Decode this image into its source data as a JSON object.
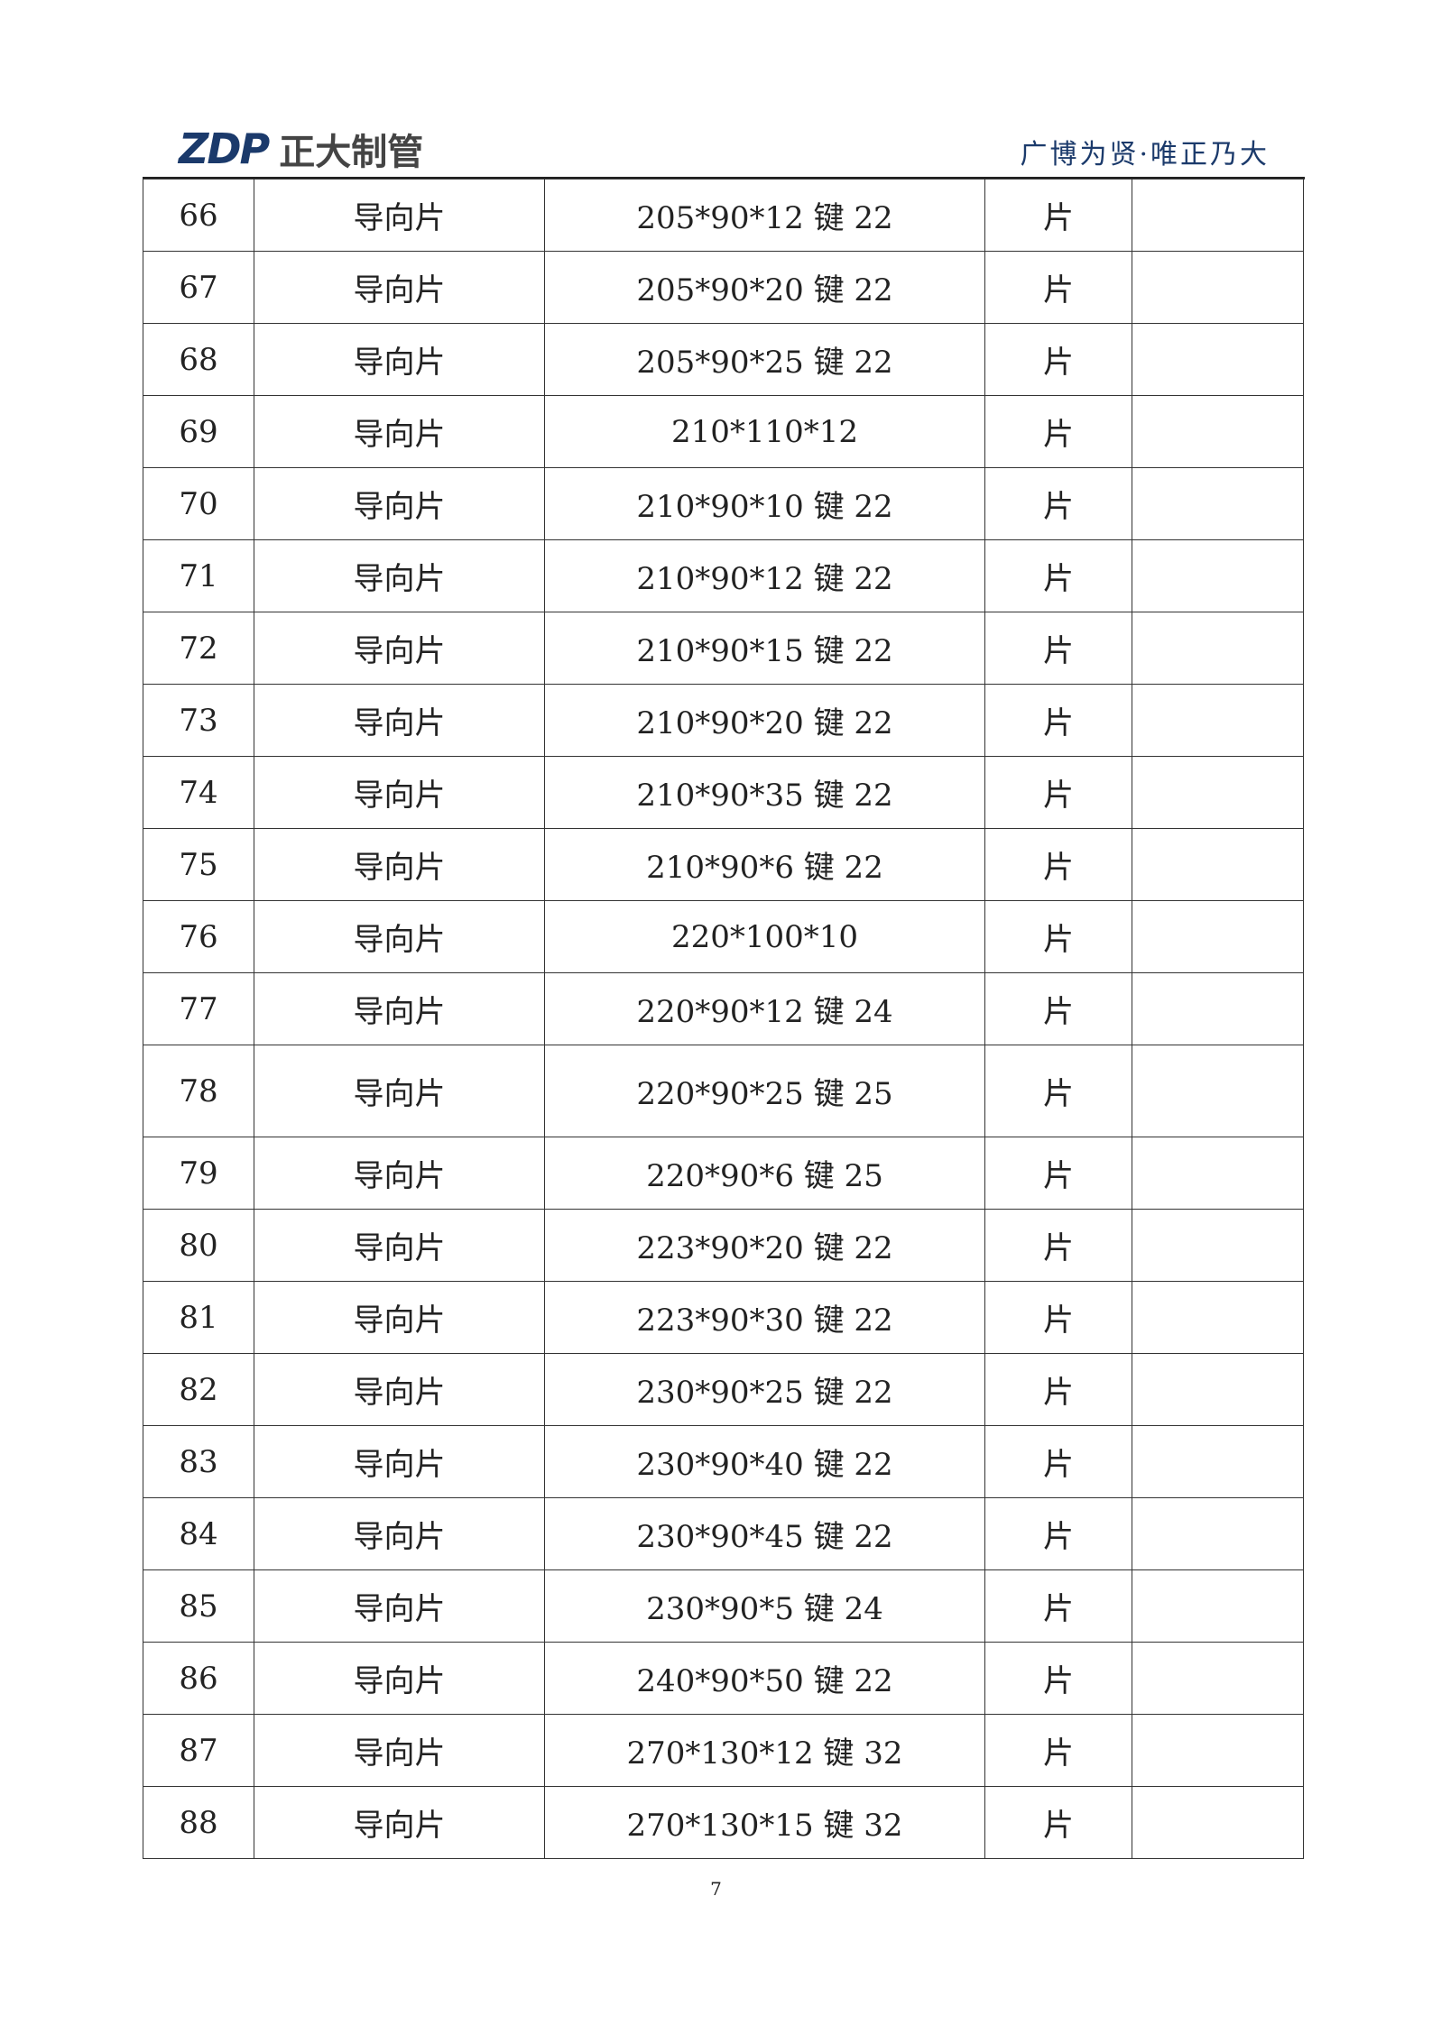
{
  "header": {
    "logo_mark": "ZDP",
    "logo_name": "正大制管",
    "tagline": "广博为贤·唯正乃大"
  },
  "table": {
    "rows": [
      {
        "no": "66",
        "name": "导向片",
        "spec": "205*90*12 键 22",
        "unit": "片",
        "remark": ""
      },
      {
        "no": "67",
        "name": "导向片",
        "spec": "205*90*20 键 22",
        "unit": "片",
        "remark": ""
      },
      {
        "no": "68",
        "name": "导向片",
        "spec": "205*90*25 键 22",
        "unit": "片",
        "remark": ""
      },
      {
        "no": "69",
        "name": "导向片",
        "spec": "210*110*12",
        "unit": "片",
        "remark": ""
      },
      {
        "no": "70",
        "name": "导向片",
        "spec": "210*90*10 键 22",
        "unit": "片",
        "remark": ""
      },
      {
        "no": "71",
        "name": "导向片",
        "spec": "210*90*12 键 22",
        "unit": "片",
        "remark": ""
      },
      {
        "no": "72",
        "name": "导向片",
        "spec": "210*90*15 键 22",
        "unit": "片",
        "remark": ""
      },
      {
        "no": "73",
        "name": "导向片",
        "spec": "210*90*20 键 22",
        "unit": "片",
        "remark": ""
      },
      {
        "no": "74",
        "name": "导向片",
        "spec": "210*90*35 键 22",
        "unit": "片",
        "remark": ""
      },
      {
        "no": "75",
        "name": "导向片",
        "spec": "210*90*6 键 22",
        "unit": "片",
        "remark": ""
      },
      {
        "no": "76",
        "name": "导向片",
        "spec": "220*100*10",
        "unit": "片",
        "remark": ""
      },
      {
        "no": "77",
        "name": "导向片",
        "spec": "220*90*12 键 24",
        "unit": "片",
        "remark": ""
      },
      {
        "no": "78",
        "name": "导向片",
        "spec": "220*90*25 键 25",
        "unit": "片",
        "remark": ""
      },
      {
        "no": "79",
        "name": "导向片",
        "spec": "220*90*6 键 25",
        "unit": "片",
        "remark": ""
      },
      {
        "no": "80",
        "name": "导向片",
        "spec": "223*90*20 键 22",
        "unit": "片",
        "remark": ""
      },
      {
        "no": "81",
        "name": "导向片",
        "spec": "223*90*30 键 22",
        "unit": "片",
        "remark": ""
      },
      {
        "no": "82",
        "name": "导向片",
        "spec": "230*90*25 键 22",
        "unit": "片",
        "remark": ""
      },
      {
        "no": "83",
        "name": "导向片",
        "spec": "230*90*40 键 22",
        "unit": "片",
        "remark": ""
      },
      {
        "no": "84",
        "name": "导向片",
        "spec": "230*90*45 键 22",
        "unit": "片",
        "remark": ""
      },
      {
        "no": "85",
        "name": "导向片",
        "spec": "230*90*5 键 24",
        "unit": "片",
        "remark": ""
      },
      {
        "no": "86",
        "name": "导向片",
        "spec": "240*90*50 键 22",
        "unit": "片",
        "remark": ""
      },
      {
        "no": "87",
        "name": "导向片",
        "spec": "270*130*12 键 32",
        "unit": "片",
        "remark": ""
      },
      {
        "no": "88",
        "name": "导向片",
        "spec": "270*130*15 键 32",
        "unit": "片",
        "remark": ""
      }
    ]
  },
  "footer": {
    "page_number": "7"
  }
}
